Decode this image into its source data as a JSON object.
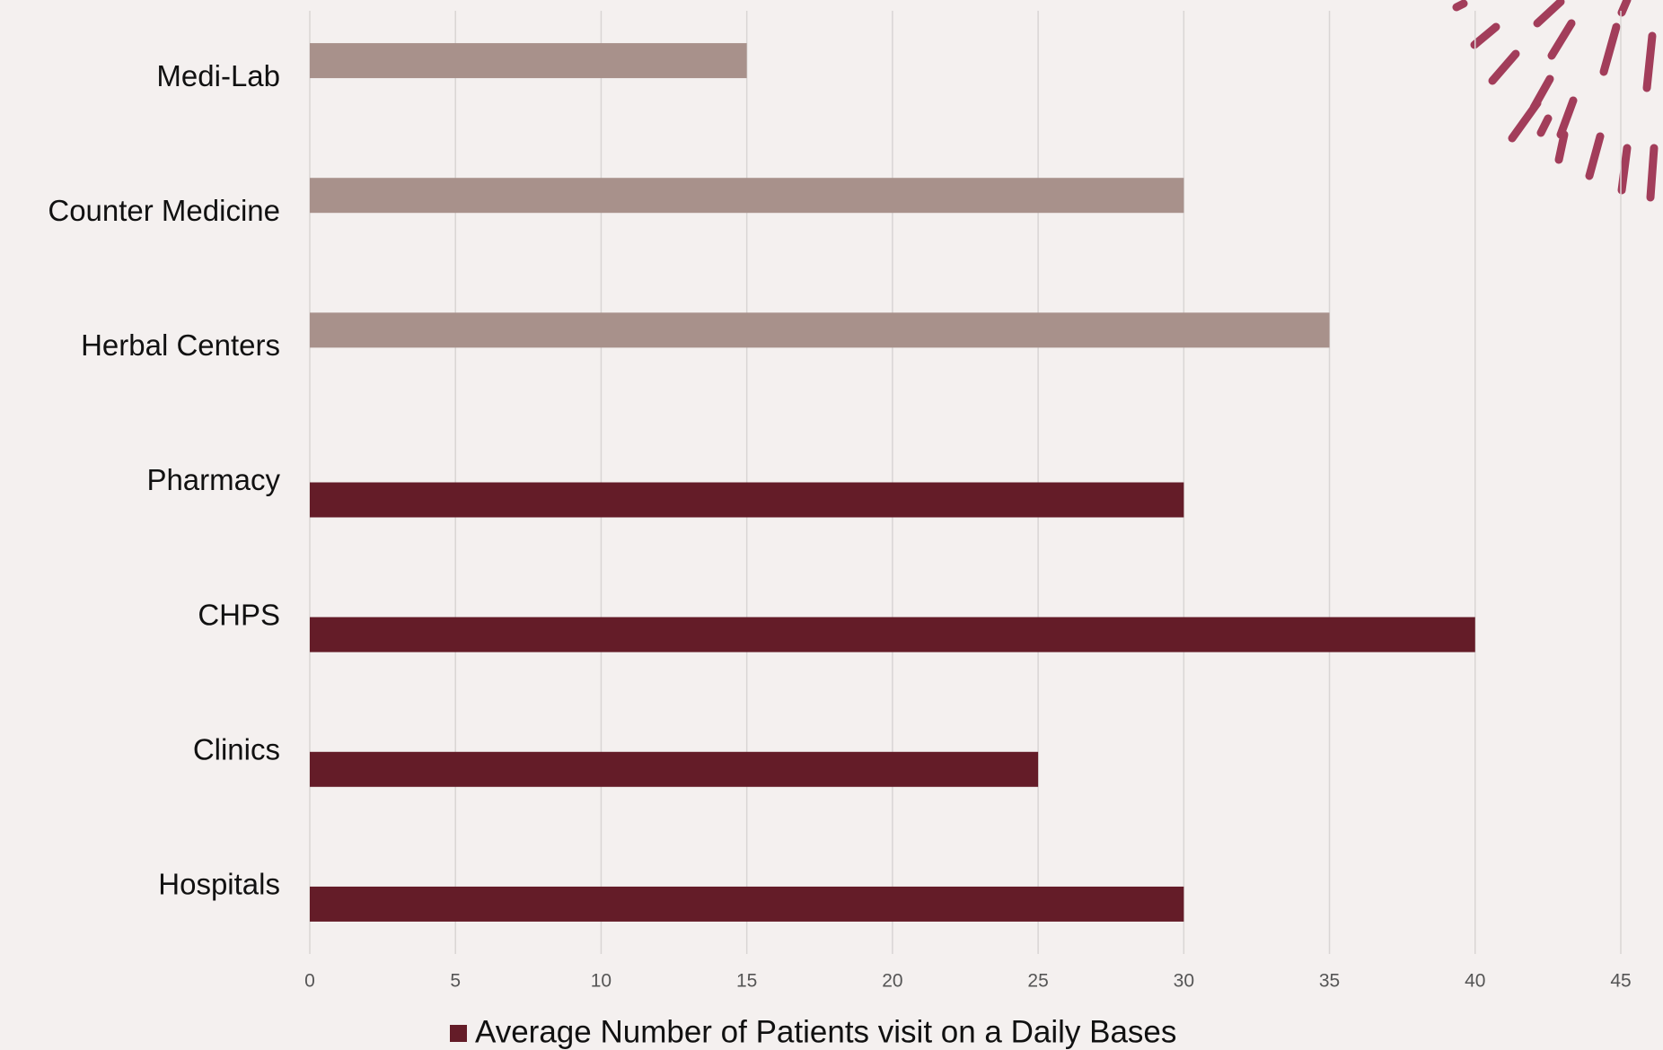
{
  "chart_data": {
    "type": "bar",
    "orientation": "horizontal",
    "categories": [
      "Medi-Lab",
      "Counter Medicine",
      "Herbal Centers",
      "Pharmacy",
      "CHPS",
      "Clinics",
      "Hospitals"
    ],
    "series": [
      {
        "color": "#a8918b",
        "values": [
          15,
          30,
          35,
          null,
          null,
          null,
          null
        ]
      },
      {
        "name": "Average Number of Patients visit on a Daily Bases",
        "color": "#641c28",
        "values": [
          null,
          null,
          null,
          30,
          40,
          25,
          30
        ]
      }
    ],
    "xlim": [
      0,
      45
    ],
    "xticks": [
      0,
      5,
      10,
      15,
      20,
      25,
      30,
      35,
      40,
      45
    ],
    "grid": true,
    "legend": "bottom"
  }
}
